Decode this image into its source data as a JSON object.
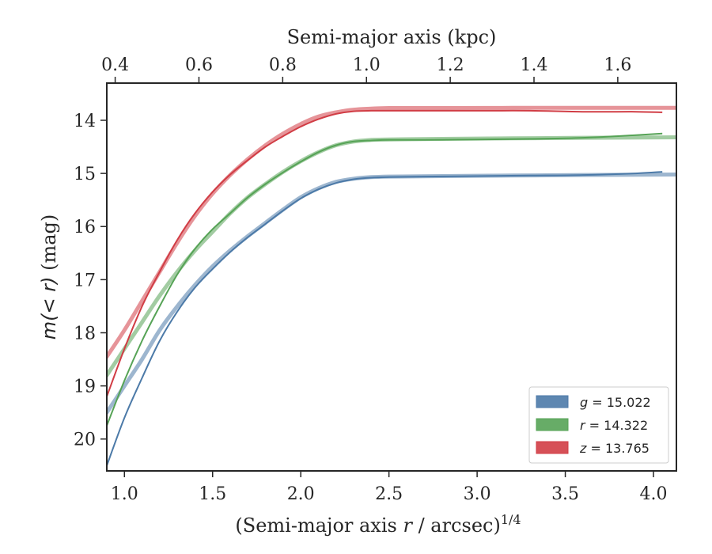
{
  "chart_data": {
    "type": "line",
    "xlabel": "(Semi-major axis r / arcsec)^1/4",
    "xlabel_parts": {
      "before": "(Semi-major axis ",
      "var": "r",
      "after": " / arcsec)",
      "sup": "1/4"
    },
    "ylabel": "m(< r) (mag)",
    "ylabel_parts": {
      "math": "m(< r)",
      "unit": " (mag)"
    },
    "top_xlabel": "Semi-major axis (kpc)",
    "xlim": [
      0.9,
      4.13
    ],
    "ylim": [
      20.6,
      13.3
    ],
    "y_inverted": true,
    "x_ticks": [
      1.0,
      1.5,
      2.0,
      2.5,
      3.0,
      3.5,
      4.0
    ],
    "x_tick_labels": [
      "1.0",
      "1.5",
      "2.0",
      "2.5",
      "3.0",
      "3.5",
      "4.0"
    ],
    "y_ticks": [
      14,
      15,
      16,
      17,
      18,
      19,
      20
    ],
    "y_tick_labels": [
      "14",
      "15",
      "16",
      "17",
      "18",
      "19",
      "20"
    ],
    "top_x_ticks": [
      0.4,
      0.6,
      0.8,
      1.0,
      1.2,
      1.4,
      1.6
    ],
    "top_x_tick_labels": [
      "0.4",
      "0.6",
      "0.8",
      "1.0",
      "1.2",
      "1.4",
      "1.6"
    ],
    "top_xlim": [
      0.38,
      1.74
    ],
    "grid": false,
    "legend_position": "lower-right",
    "legend": [
      {
        "label_var": "g",
        "label_value": " = 15.022",
        "color": "#4c7aa8"
      },
      {
        "label_var": "r",
        "label_value": " = 14.322",
        "color": "#56a356"
      },
      {
        "label_var": "z",
        "label_value": " = 13.765",
        "color": "#d13d45"
      }
    ],
    "series": [
      {
        "band": "g",
        "color": "#4c7aa8",
        "data_x": [
          0.9,
          1.0,
          1.1,
          1.2,
          1.3,
          1.4,
          1.5,
          1.6,
          1.7,
          1.8,
          1.9,
          2.0,
          2.1,
          2.2,
          2.3,
          2.4,
          2.5,
          2.7,
          3.0,
          3.3,
          3.6,
          3.9,
          4.05
        ],
        "data_y": [
          20.5,
          19.6,
          18.85,
          18.15,
          17.6,
          17.15,
          16.8,
          16.48,
          16.2,
          15.95,
          15.7,
          15.47,
          15.3,
          15.18,
          15.11,
          15.08,
          15.07,
          15.06,
          15.05,
          15.04,
          15.03,
          15.0,
          14.97
        ],
        "model_x": [
          0.9,
          1.0,
          1.1,
          1.2,
          1.3,
          1.4,
          1.5,
          1.6,
          1.7,
          1.8,
          1.9,
          2.0,
          2.1,
          2.2,
          2.3,
          2.4,
          2.5,
          2.8,
          3.2,
          3.6,
          4.13
        ],
        "model_y": [
          19.5,
          19.0,
          18.5,
          17.95,
          17.5,
          17.1,
          16.75,
          16.45,
          16.18,
          15.93,
          15.68,
          15.45,
          15.28,
          15.16,
          15.1,
          15.07,
          15.06,
          15.05,
          15.04,
          15.03,
          15.02
        ]
      },
      {
        "band": "r",
        "color": "#56a356",
        "data_x": [
          0.9,
          1.0,
          1.1,
          1.2,
          1.3,
          1.4,
          1.5,
          1.6,
          1.7,
          1.8,
          1.9,
          2.0,
          2.1,
          2.2,
          2.3,
          2.4,
          2.5,
          2.7,
          3.0,
          3.3,
          3.6,
          3.9,
          4.05
        ],
        "data_y": [
          19.75,
          18.9,
          18.15,
          17.5,
          16.9,
          16.42,
          16.05,
          15.75,
          15.45,
          15.2,
          14.98,
          14.78,
          14.6,
          14.47,
          14.4,
          14.38,
          14.37,
          14.37,
          14.36,
          14.35,
          14.33,
          14.28,
          14.25
        ],
        "model_x": [
          0.9,
          1.0,
          1.1,
          1.2,
          1.3,
          1.4,
          1.5,
          1.6,
          1.7,
          1.8,
          1.9,
          2.0,
          2.1,
          2.2,
          2.3,
          2.4,
          2.5,
          2.8,
          3.2,
          3.6,
          4.13
        ],
        "model_y": [
          18.8,
          18.3,
          17.8,
          17.3,
          16.85,
          16.45,
          16.1,
          15.75,
          15.45,
          15.2,
          14.97,
          14.77,
          14.6,
          14.47,
          14.4,
          14.37,
          14.36,
          14.35,
          14.34,
          14.33,
          14.32
        ]
      },
      {
        "band": "z",
        "color": "#d13d45",
        "data_x": [
          0.9,
          1.0,
          1.1,
          1.2,
          1.3,
          1.4,
          1.5,
          1.6,
          1.7,
          1.8,
          1.9,
          2.0,
          2.1,
          2.2,
          2.3,
          2.4,
          2.5,
          2.7,
          3.0,
          3.3,
          3.6,
          3.9,
          4.05
        ],
        "data_y": [
          19.2,
          18.3,
          17.5,
          16.85,
          16.25,
          15.75,
          15.35,
          15.02,
          14.75,
          14.5,
          14.3,
          14.12,
          13.98,
          13.88,
          13.83,
          13.82,
          13.82,
          13.82,
          13.82,
          13.82,
          13.84,
          13.84,
          13.85
        ],
        "model_x": [
          0.9,
          1.0,
          1.1,
          1.2,
          1.3,
          1.4,
          1.5,
          1.6,
          1.7,
          1.8,
          1.9,
          2.0,
          2.1,
          2.2,
          2.3,
          2.4,
          2.5,
          2.8,
          3.2,
          3.6,
          4.13
        ],
        "model_y": [
          18.45,
          17.95,
          17.4,
          16.85,
          16.3,
          15.8,
          15.38,
          15.03,
          14.73,
          14.47,
          14.25,
          14.07,
          13.93,
          13.85,
          13.8,
          13.78,
          13.77,
          13.77,
          13.766,
          13.765,
          13.765
        ]
      }
    ]
  }
}
